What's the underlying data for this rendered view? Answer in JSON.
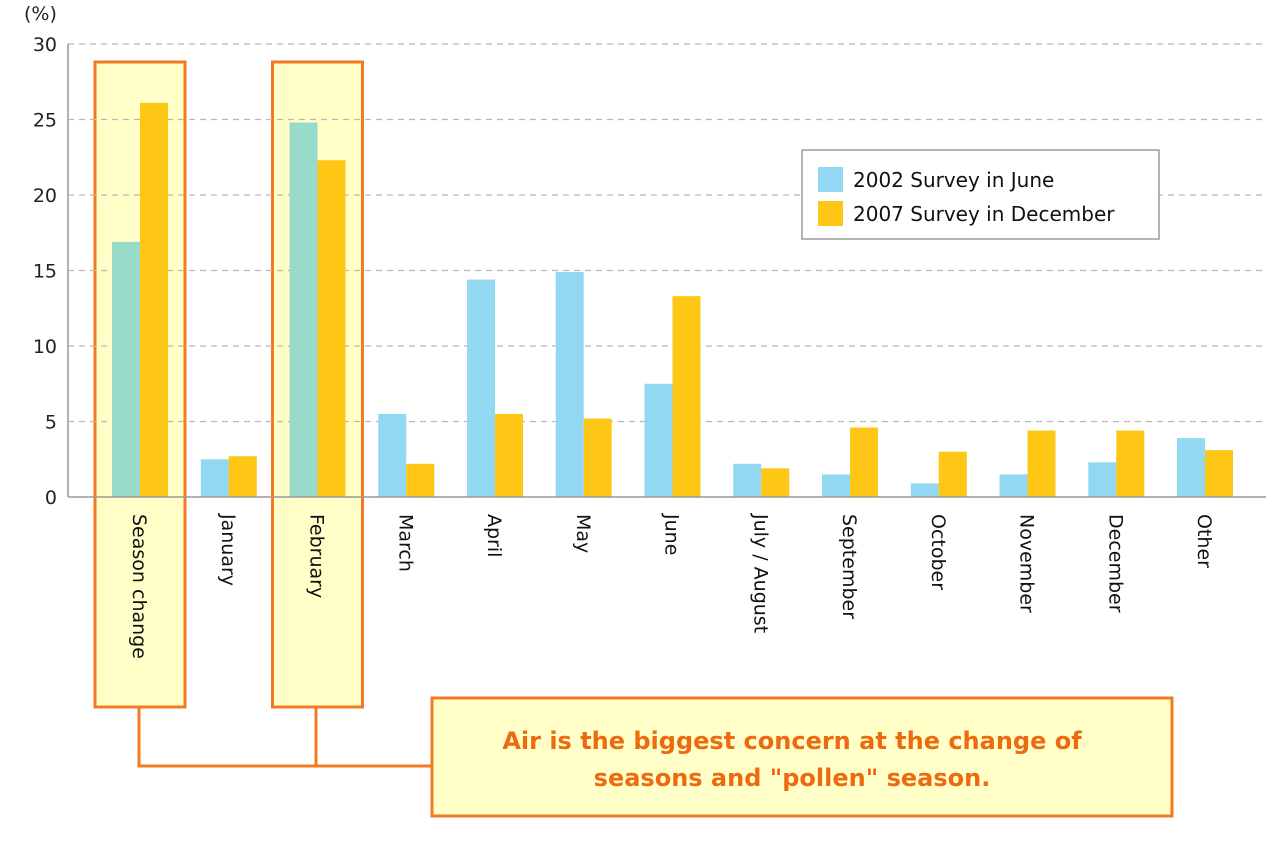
{
  "chart_data": {
    "type": "bar",
    "ylabel": "(%)",
    "ylim": [
      0,
      30
    ],
    "yticks": [
      0,
      5,
      10,
      15,
      20,
      25,
      30
    ],
    "grid": true,
    "legend_position": "top-right",
    "categories": [
      "Season change",
      "January",
      "February",
      "March",
      "April",
      "May",
      "June",
      "July / August",
      "September",
      "October",
      "November",
      "December",
      "Other"
    ],
    "series": [
      {
        "name": "2002 Survey in June",
        "color": "#93d8f2",
        "values": [
          16.9,
          2.5,
          24.8,
          5.5,
          14.4,
          14.9,
          7.5,
          2.2,
          1.5,
          0.9,
          1.5,
          2.3,
          3.9
        ]
      },
      {
        "name": "2007 Survey in December",
        "color": "#fec615",
        "values": [
          26.1,
          2.7,
          22.3,
          2.2,
          5.5,
          5.2,
          13.3,
          1.9,
          4.6,
          3.0,
          4.4,
          4.4,
          3.1
        ]
      }
    ],
    "highlighted_categories": [
      "Season change",
      "February"
    ],
    "highlight_series0_color": "#98dbc8",
    "annotation": {
      "line1": "Air is the biggest concern at the change of",
      "line2": "seasons and \"pollen\" season.",
      "text_color": "#ee6a10",
      "box_fill": "#ffffc7",
      "border_color": "#f47920"
    }
  }
}
